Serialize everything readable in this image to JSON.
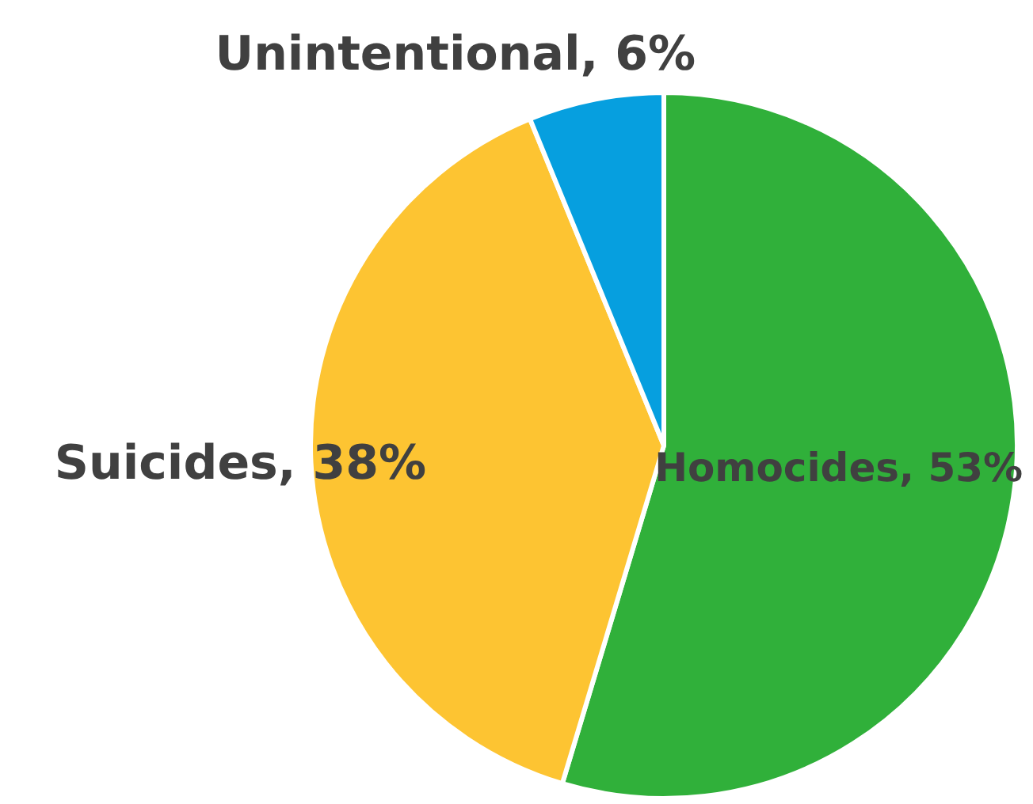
{
  "chart_data": {
    "type": "pie",
    "categories": [
      "Homocides",
      "Suicides",
      "Unintentional"
    ],
    "values": [
      53,
      38,
      6
    ],
    "colors": [
      "#30b03a",
      "#fdc432",
      "#069fdf"
    ],
    "value_labels": [
      "53%",
      "38%",
      "6%"
    ],
    "legend": false
  }
}
